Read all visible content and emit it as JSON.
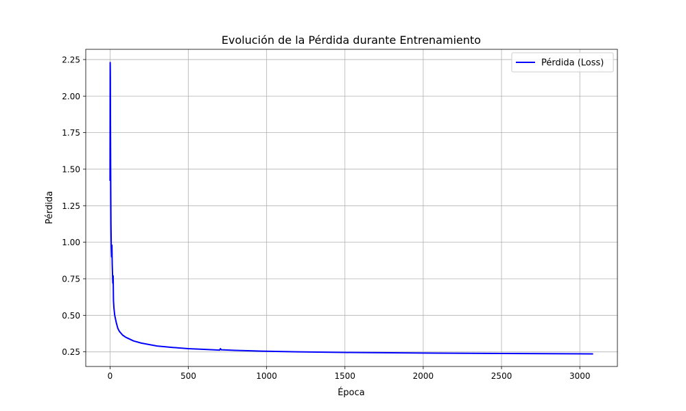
{
  "chart_data": {
    "type": "line",
    "title": "Evolución de la Pérdida durante Entrenamiento",
    "xlabel": "Época",
    "ylabel": "Pérdida",
    "xlim": [
      -155,
      3240
    ],
    "ylim": [
      0.15,
      2.32
    ],
    "xticks": [
      0,
      500,
      1000,
      1500,
      2000,
      2500,
      3000
    ],
    "yticks": [
      0.25,
      0.5,
      0.75,
      1.0,
      1.25,
      1.5,
      1.75,
      2.0,
      2.25
    ],
    "xtick_labels": [
      "0",
      "500",
      "1000",
      "1500",
      "2000",
      "2500",
      "3000"
    ],
    "ytick_labels": [
      "0.25",
      "0.50",
      "0.75",
      "1.00",
      "1.25",
      "1.50",
      "1.75",
      "2.00",
      "2.25"
    ],
    "grid": true,
    "legend_position": "top-right",
    "series": [
      {
        "name": "Pérdida (Loss)",
        "color": "#0000ff",
        "x": [
          0,
          1,
          2,
          3,
          4,
          5,
          6,
          8,
          10,
          12,
          14,
          16,
          18,
          20,
          22,
          25,
          30,
          40,
          50,
          60,
          80,
          100,
          150,
          200,
          300,
          400,
          500,
          600,
          700,
          705,
          710,
          800,
          900,
          1000,
          1200,
          1500,
          2000,
          2500,
          3000,
          3085
        ],
        "y": [
          1.42,
          2.23,
          2.15,
          1.78,
          1.5,
          1.3,
          1.12,
          0.97,
          0.9,
          0.98,
          0.85,
          0.78,
          0.72,
          0.77,
          0.6,
          0.55,
          0.5,
          0.45,
          0.41,
          0.39,
          0.365,
          0.35,
          0.325,
          0.31,
          0.29,
          0.28,
          0.272,
          0.267,
          0.262,
          0.272,
          0.264,
          0.26,
          0.257,
          0.254,
          0.25,
          0.246,
          0.242,
          0.239,
          0.237,
          0.236
        ]
      }
    ]
  }
}
